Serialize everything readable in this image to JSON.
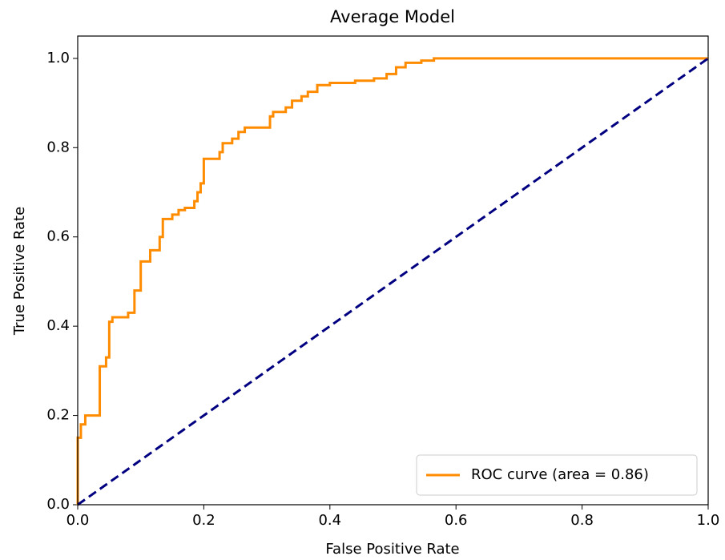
{
  "chart_data": {
    "type": "line",
    "title": "Average Model",
    "xlabel": "False Positive Rate",
    "ylabel": "True Positive Rate",
    "xlim": [
      0,
      1
    ],
    "ylim": [
      0,
      1.05
    ],
    "xticks": [
      {
        "value": 0,
        "label": "0.0"
      },
      0.2,
      0.4,
      0.6,
      0.8,
      {
        "value": 1,
        "label": "1.0"
      }
    ],
    "yticks": [
      {
        "value": 0,
        "label": "0.0"
      },
      0.2,
      0.4,
      0.6,
      0.8,
      {
        "value": 1,
        "label": "1.0"
      }
    ],
    "legend": "lower right",
    "grid": false,
    "series": [
      {
        "name": "ROC curve (area = 0.86)",
        "color": "#ff8c00",
        "dash": false,
        "x": [
          0,
          0,
          0.005,
          0.005,
          0.012,
          0.012,
          0.035,
          0.035,
          0.045,
          0.045,
          0.05,
          0.05,
          0.055,
          0.055,
          0.08,
          0.08,
          0.09,
          0.09,
          0.1,
          0.1,
          0.115,
          0.115,
          0.13,
          0.13,
          0.135,
          0.135,
          0.15,
          0.15,
          0.16,
          0.16,
          0.17,
          0.17,
          0.185,
          0.185,
          0.19,
          0.19,
          0.195,
          0.195,
          0.2,
          0.2,
          0.225,
          0.225,
          0.23,
          0.23,
          0.245,
          0.245,
          0.255,
          0.255,
          0.265,
          0.265,
          0.305,
          0.305,
          0.31,
          0.31,
          0.33,
          0.33,
          0.34,
          0.34,
          0.355,
          0.355,
          0.365,
          0.365,
          0.38,
          0.38,
          0.4,
          0.4,
          0.44,
          0.44,
          0.47,
          0.47,
          0.49,
          0.49,
          0.505,
          0.505,
          0.52,
          0.52,
          0.545,
          0.545,
          0.565,
          0.565,
          1
        ],
        "values": [
          0,
          0.15,
          0.15,
          0.18,
          0.18,
          0.2,
          0.2,
          0.31,
          0.31,
          0.33,
          0.33,
          0.41,
          0.41,
          0.42,
          0.42,
          0.43,
          0.43,
          0.48,
          0.48,
          0.545,
          0.545,
          0.57,
          0.57,
          0.6,
          0.6,
          0.64,
          0.64,
          0.65,
          0.65,
          0.66,
          0.66,
          0.665,
          0.665,
          0.68,
          0.68,
          0.7,
          0.7,
          0.72,
          0.72,
          0.775,
          0.775,
          0.79,
          0.79,
          0.81,
          0.81,
          0.82,
          0.82,
          0.835,
          0.835,
          0.845,
          0.845,
          0.87,
          0.87,
          0.88,
          0.88,
          0.89,
          0.89,
          0.905,
          0.905,
          0.915,
          0.915,
          0.925,
          0.925,
          0.94,
          0.94,
          0.945,
          0.945,
          0.95,
          0.95,
          0.955,
          0.955,
          0.965,
          0.965,
          0.98,
          0.98,
          0.99,
          0.99,
          0.995,
          0.995,
          1,
          1
        ]
      },
      {
        "color": "#000080",
        "dash": true,
        "x": [
          0,
          1
        ],
        "values": [
          0,
          1
        ]
      }
    ]
  }
}
